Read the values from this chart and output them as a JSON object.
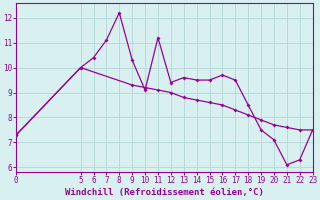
{
  "xlabel": "Windchill (Refroidissement éolien,°C)",
  "bg_color": "#d8f0f0",
  "line_color": "#990099",
  "grid_color": "#b8dada",
  "series1_x": [
    0,
    5,
    6,
    7,
    8,
    9,
    10,
    11,
    12,
    13,
    14,
    15,
    16,
    17,
    18,
    19,
    20,
    21,
    22,
    23
  ],
  "series1_y": [
    7.3,
    10.0,
    10.4,
    11.1,
    12.2,
    10.3,
    9.1,
    11.2,
    9.4,
    9.6,
    9.5,
    9.5,
    9.7,
    9.5,
    8.5,
    7.5,
    7.1,
    6.1,
    6.3,
    7.5
  ],
  "series2_x": [
    0,
    5,
    9,
    10,
    11,
    12,
    13,
    14,
    15,
    16,
    17,
    18,
    19,
    20,
    21,
    22,
    23
  ],
  "series2_y": [
    7.3,
    10.0,
    9.3,
    9.2,
    9.1,
    9.0,
    8.8,
    8.7,
    8.6,
    8.5,
    8.3,
    8.1,
    7.9,
    7.7,
    7.6,
    7.5,
    7.5
  ],
  "xlim": [
    0,
    23
  ],
  "ylim": [
    5.8,
    12.6
  ],
  "yticks": [
    6,
    7,
    8,
    9,
    10,
    11,
    12
  ],
  "xticks": [
    0,
    5,
    6,
    7,
    8,
    9,
    10,
    11,
    12,
    13,
    14,
    15,
    16,
    17,
    18,
    19,
    20,
    21,
    22,
    23
  ],
  "xlabel_fontsize": 6.5,
  "tick_fontsize": 5.5
}
